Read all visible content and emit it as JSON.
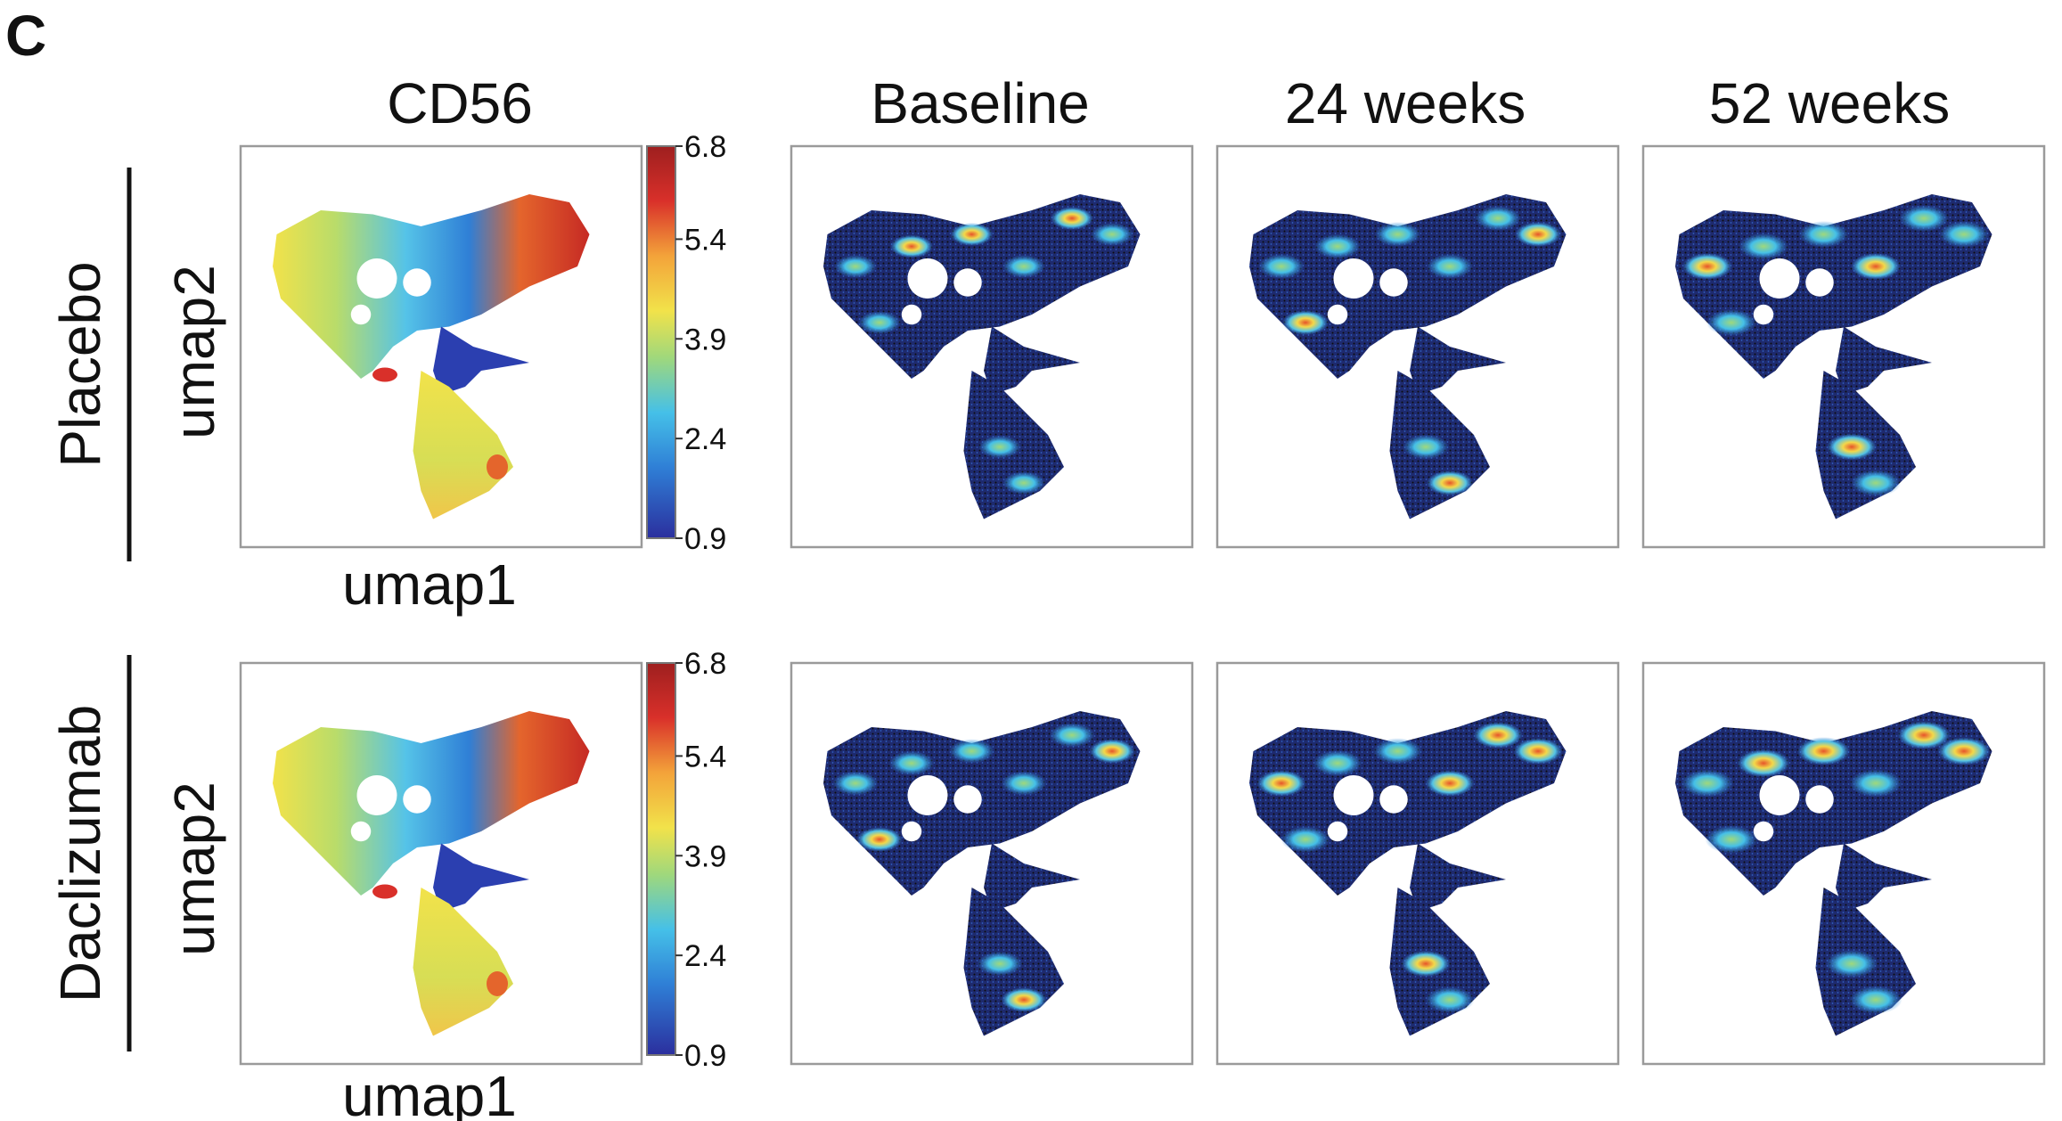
{
  "panel_letter": "C",
  "columns": [
    "CD56",
    "Baseline",
    "24 weeks",
    "52 weeks"
  ],
  "rows": [
    "Placebo",
    "Daclizumab"
  ],
  "axes": {
    "xlabel": "umap1",
    "ylabel": "umap2"
  },
  "chart_data": {
    "type": "scatter",
    "panel_letter": "C",
    "columns": [
      "CD56",
      "Baseline",
      "24 weeks",
      "52 weeks"
    ],
    "rows": [
      "Placebo",
      "Daclizumab"
    ],
    "xlabel": "umap1",
    "ylabel": "umap2",
    "colorbar": {
      "ticks": [
        "6.8",
        "5.4",
        "3.9",
        "2.4",
        "0.9"
      ],
      "range": [
        0.9,
        6.8
      ],
      "colormap": [
        "#2b2f9e",
        "#2f7fd6",
        "#45c0e8",
        "#9fd87c",
        "#f2e24a",
        "#f3a33a",
        "#d9302a",
        "#9e1f1f"
      ]
    },
    "density_colormap": [
      "#111111",
      "#1f3f9a",
      "#2f7fd6",
      "#54c4e6",
      "#f3d84a",
      "#e6542a"
    ],
    "grid": false
  }
}
